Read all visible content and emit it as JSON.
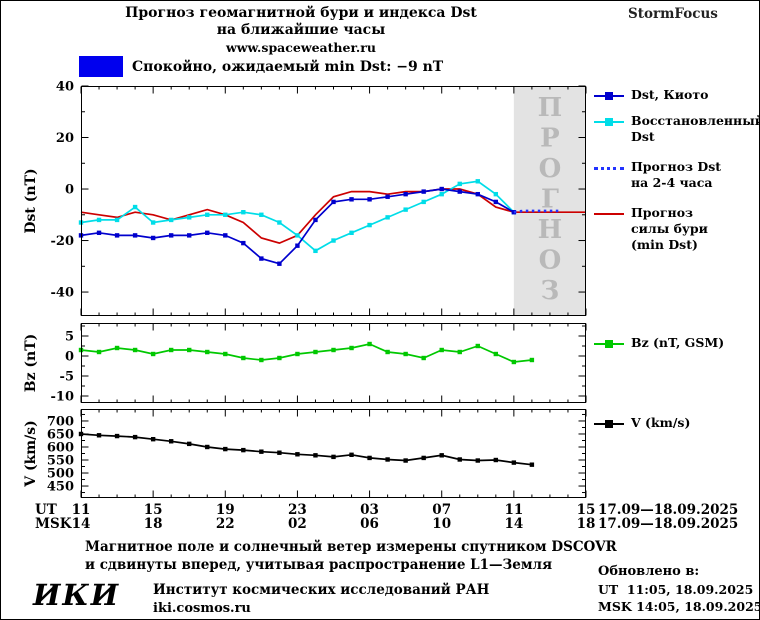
{
  "header": {
    "title_line1": "Прогноз геомагнитной бури и индекса Dst",
    "title_line2": "на ближайшие часы",
    "url": "www.spaceweather.ru",
    "brand": "StormFocus"
  },
  "status": {
    "label": "Спокойно, ожидаемый min Dst: −9 nT",
    "box_color": "#0000ee"
  },
  "legend": {
    "entries": [
      {
        "label": "Dst, Киото",
        "color": "#0000cd",
        "style": "line-square"
      },
      {
        "label": "Восстановленный\nDst",
        "color": "#00dde8",
        "style": "line-square"
      },
      {
        "label": "Прогноз Dst\nна 2-4 часа",
        "color": "#2233ff",
        "style": "dotted"
      },
      {
        "label": "Прогноз\nсилы бури\n(min Dst)",
        "color": "#cc0000",
        "style": "line"
      },
      {
        "label": "Bz (nT, GSM)",
        "color": "#00c800",
        "style": "line-square"
      },
      {
        "label": "V (km/s)",
        "color": "#000000",
        "style": "line-square"
      }
    ]
  },
  "xaxis": {
    "ut_label": "UT",
    "msk_label": "MSK",
    "ut_ticks": [
      "11",
      "15",
      "19",
      "23",
      "03",
      "07",
      "11",
      "15"
    ],
    "msk_ticks": [
      "14",
      "18",
      "22",
      "02",
      "06",
      "10",
      "14",
      "18"
    ],
    "date_range": "17.09—18.09.2025"
  },
  "chart_data": [
    {
      "type": "line",
      "ylabel": "Dst (nT)",
      "ylim": [
        -49.3,
        40
      ],
      "yticks": [
        40,
        20,
        0,
        -20,
        -40
      ],
      "xlim": [
        0,
        28
      ],
      "x_unit": "hours since 17.09.2025 11:00 UT",
      "forecast_region": {
        "from": 24,
        "to": 28,
        "label": "ПРОГНОЗ",
        "fill": "#e3e3e3",
        "label_color": "#b9b9b9"
      },
      "series": [
        {
          "name": "Прогноз силы бури (min Dst)",
          "color": "#cc0000",
          "style": "solid",
          "markers": false,
          "points": [
            [
              0,
              -9
            ],
            [
              1,
              -10
            ],
            [
              2,
              -11
            ],
            [
              3,
              -9
            ],
            [
              4,
              -10
            ],
            [
              5,
              -12
            ],
            [
              6,
              -10
            ],
            [
              7,
              -8
            ],
            [
              8,
              -10
            ],
            [
              9,
              -13
            ],
            [
              10,
              -19
            ],
            [
              11,
              -21
            ],
            [
              12,
              -18
            ],
            [
              13,
              -10
            ],
            [
              14,
              -3
            ],
            [
              15,
              -1
            ],
            [
              16,
              -1
            ],
            [
              17,
              -2
            ],
            [
              18,
              -1
            ],
            [
              19,
              -1
            ],
            [
              20,
              0
            ],
            [
              21,
              0
            ],
            [
              22,
              -2
            ],
            [
              23,
              -7
            ],
            [
              24,
              -9
            ],
            [
              25,
              -9
            ],
            [
              26,
              -9
            ],
            [
              27,
              -9
            ],
            [
              28,
              -9
            ]
          ]
        },
        {
          "name": "Восстановленный Dst",
          "color": "#00dde8",
          "style": "solid",
          "markers": true,
          "points": [
            [
              0,
              -13
            ],
            [
              1,
              -12
            ],
            [
              2,
              -12
            ],
            [
              3,
              -7
            ],
            [
              4,
              -13
            ],
            [
              5,
              -12
            ],
            [
              6,
              -11
            ],
            [
              7,
              -10
            ],
            [
              8,
              -10
            ],
            [
              9,
              -9
            ],
            [
              10,
              -10
            ],
            [
              11,
              -13
            ],
            [
              12,
              -18
            ],
            [
              13,
              -24
            ],
            [
              14,
              -20
            ],
            [
              15,
              -17
            ],
            [
              16,
              -14
            ],
            [
              17,
              -11
            ],
            [
              18,
              -8
            ],
            [
              19,
              -5
            ],
            [
              20,
              -2
            ],
            [
              21,
              2
            ],
            [
              22,
              3
            ],
            [
              23,
              -2
            ],
            [
              24,
              -9
            ]
          ]
        },
        {
          "name": "Dst, Киото",
          "color": "#0000cd",
          "style": "solid",
          "markers": true,
          "points": [
            [
              0,
              -18
            ],
            [
              1,
              -17
            ],
            [
              2,
              -18
            ],
            [
              3,
              -18
            ],
            [
              4,
              -19
            ],
            [
              5,
              -18
            ],
            [
              6,
              -18
            ],
            [
              7,
              -17
            ],
            [
              8,
              -18
            ],
            [
              9,
              -21
            ],
            [
              10,
              -27
            ],
            [
              11,
              -29
            ],
            [
              12,
              -22
            ],
            [
              13,
              -12
            ],
            [
              14,
              -5
            ],
            [
              15,
              -4
            ],
            [
              16,
              -4
            ],
            [
              17,
              -3
            ],
            [
              18,
              -2
            ],
            [
              19,
              -1
            ],
            [
              20,
              0
            ],
            [
              21,
              -1
            ],
            [
              22,
              -2
            ],
            [
              23,
              -5
            ],
            [
              24,
              -9
            ]
          ]
        },
        {
          "name": "Прогноз Dst на 2-4 часа",
          "color": "#2233ff",
          "style": "dotted",
          "markers": false,
          "points": [
            [
              24,
              -9
            ],
            [
              24.5,
              -8.5
            ],
            [
              25.5,
              -8.5
            ],
            [
              26.6,
              -8.5
            ]
          ]
        }
      ]
    },
    {
      "type": "line",
      "ylabel": "Bz (nT)",
      "ylim": [
        -11.75,
        8.25
      ],
      "yticks": [
        5,
        0,
        -5,
        -10
      ],
      "xlim": [
        0,
        28
      ],
      "series": [
        {
          "name": "Bz (nT, GSM)",
          "color": "#00c800",
          "style": "solid",
          "markers": true,
          "points": [
            [
              0,
              1.5
            ],
            [
              1,
              1
            ],
            [
              2,
              2
            ],
            [
              3,
              1.5
            ],
            [
              4,
              0.5
            ],
            [
              5,
              1.5
            ],
            [
              6,
              1.5
            ],
            [
              7,
              1
            ],
            [
              8,
              0.5
            ],
            [
              9,
              -0.5
            ],
            [
              10,
              -1
            ],
            [
              11,
              -0.5
            ],
            [
              12,
              0.5
            ],
            [
              13,
              1
            ],
            [
              14,
              1.5
            ],
            [
              15,
              2
            ],
            [
              16,
              3
            ],
            [
              17,
              1
            ],
            [
              18,
              0.5
            ],
            [
              19,
              -0.5
            ],
            [
              20,
              1.5
            ],
            [
              21,
              1
            ],
            [
              22,
              2.5
            ],
            [
              23,
              0.5
            ],
            [
              24,
              -1.5
            ],
            [
              25,
              -1
            ]
          ]
        }
      ]
    },
    {
      "type": "line",
      "ylabel": "V (km/s)",
      "ylim": [
        404,
        746
      ],
      "yticks": [
        700,
        650,
        600,
        550,
        500,
        450
      ],
      "xlim": [
        0,
        28
      ],
      "series": [
        {
          "name": "V (km/s)",
          "color": "#000000",
          "style": "solid",
          "markers": true,
          "points": [
            [
              0,
              650
            ],
            [
              1,
              645
            ],
            [
              2,
              642
            ],
            [
              3,
              638
            ],
            [
              4,
              630
            ],
            [
              5,
              622
            ],
            [
              6,
              612
            ],
            [
              7,
              600
            ],
            [
              8,
              592
            ],
            [
              9,
              588
            ],
            [
              10,
              582
            ],
            [
              11,
              578
            ],
            [
              12,
              572
            ],
            [
              13,
              568
            ],
            [
              14,
              562
            ],
            [
              15,
              570
            ],
            [
              16,
              558
            ],
            [
              17,
              552
            ],
            [
              18,
              548
            ],
            [
              19,
              558
            ],
            [
              20,
              568
            ],
            [
              21,
              552
            ],
            [
              22,
              548
            ],
            [
              23,
              550
            ],
            [
              24,
              540
            ],
            [
              25,
              532
            ]
          ]
        }
      ]
    }
  ],
  "footer": {
    "note_line1": "Магнитное поле и солнечный ветер измерены спутником DSCOVR",
    "note_line2": "и сдвинуты вперед, учитывая распространение L1—Земля",
    "updated_label": "Обновлено в:",
    "updated_ut": "UT  11:05, 18.09.2025",
    "updated_msk": "MSK 14:05, 18.09.2025",
    "logo_text": "ИКИ",
    "institute": "Институт космических исследований РАН",
    "site": "iki.cosmos.ru"
  }
}
